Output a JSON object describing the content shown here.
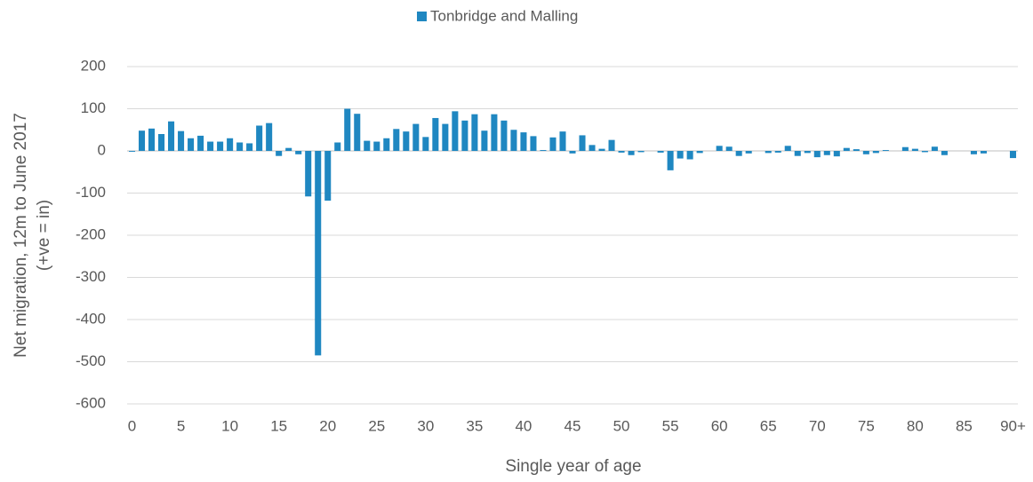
{
  "chart_data": {
    "type": "bar",
    "x_label": "Single year of age",
    "y_label": [
      "Net migration, 12m to June 2017",
      "(+ve = in)"
    ],
    "categories": [
      "0",
      null,
      null,
      null,
      null,
      "5",
      null,
      null,
      null,
      null,
      "10",
      null,
      null,
      null,
      null,
      "15",
      null,
      null,
      null,
      null,
      "20",
      null,
      null,
      null,
      null,
      "25",
      null,
      null,
      null,
      null,
      "30",
      null,
      null,
      null,
      null,
      "35",
      null,
      null,
      null,
      null,
      "40",
      null,
      null,
      null,
      null,
      "45",
      null,
      null,
      null,
      null,
      "50",
      null,
      null,
      null,
      null,
      "55",
      null,
      null,
      null,
      null,
      "60",
      null,
      null,
      null,
      null,
      "65",
      null,
      null,
      null,
      null,
      "70",
      null,
      null,
      null,
      null,
      "75",
      null,
      null,
      null,
      null,
      "80",
      null,
      null,
      null,
      null,
      "85",
      null,
      null,
      null,
      null,
      "90+"
    ],
    "series": [
      {
        "name": "Tonbridge and Malling",
        "color": "#1f87c1",
        "values": [
          -2,
          48,
          53,
          40,
          70,
          47,
          30,
          36,
          22,
          22,
          30,
          20,
          18,
          60,
          66,
          -12,
          7,
          -8,
          -108,
          -485,
          -118,
          20,
          100,
          88,
          24,
          22,
          30,
          52,
          46,
          64,
          33,
          78,
          64,
          94,
          72,
          87,
          48,
          87,
          72,
          50,
          44,
          35,
          2,
          32,
          46,
          -6,
          37,
          14,
          5,
          26,
          -4,
          -10,
          -3,
          0,
          -4,
          -46,
          -18,
          -20,
          -5,
          0,
          12,
          10,
          -12,
          -6,
          0,
          -5,
          -4,
          12,
          -12,
          -5,
          -15,
          -10,
          -13,
          7,
          4,
          -8,
          -5,
          2,
          0,
          9,
          5,
          -3,
          10,
          -10,
          0,
          0,
          -8,
          -6,
          0,
          0,
          -17
        ]
      }
    ],
    "ylim": [
      -600,
      200
    ],
    "yticks": [
      -600,
      -500,
      -400,
      -300,
      -200,
      -100,
      0,
      100,
      200
    ],
    "grid": true,
    "legend": "top"
  }
}
